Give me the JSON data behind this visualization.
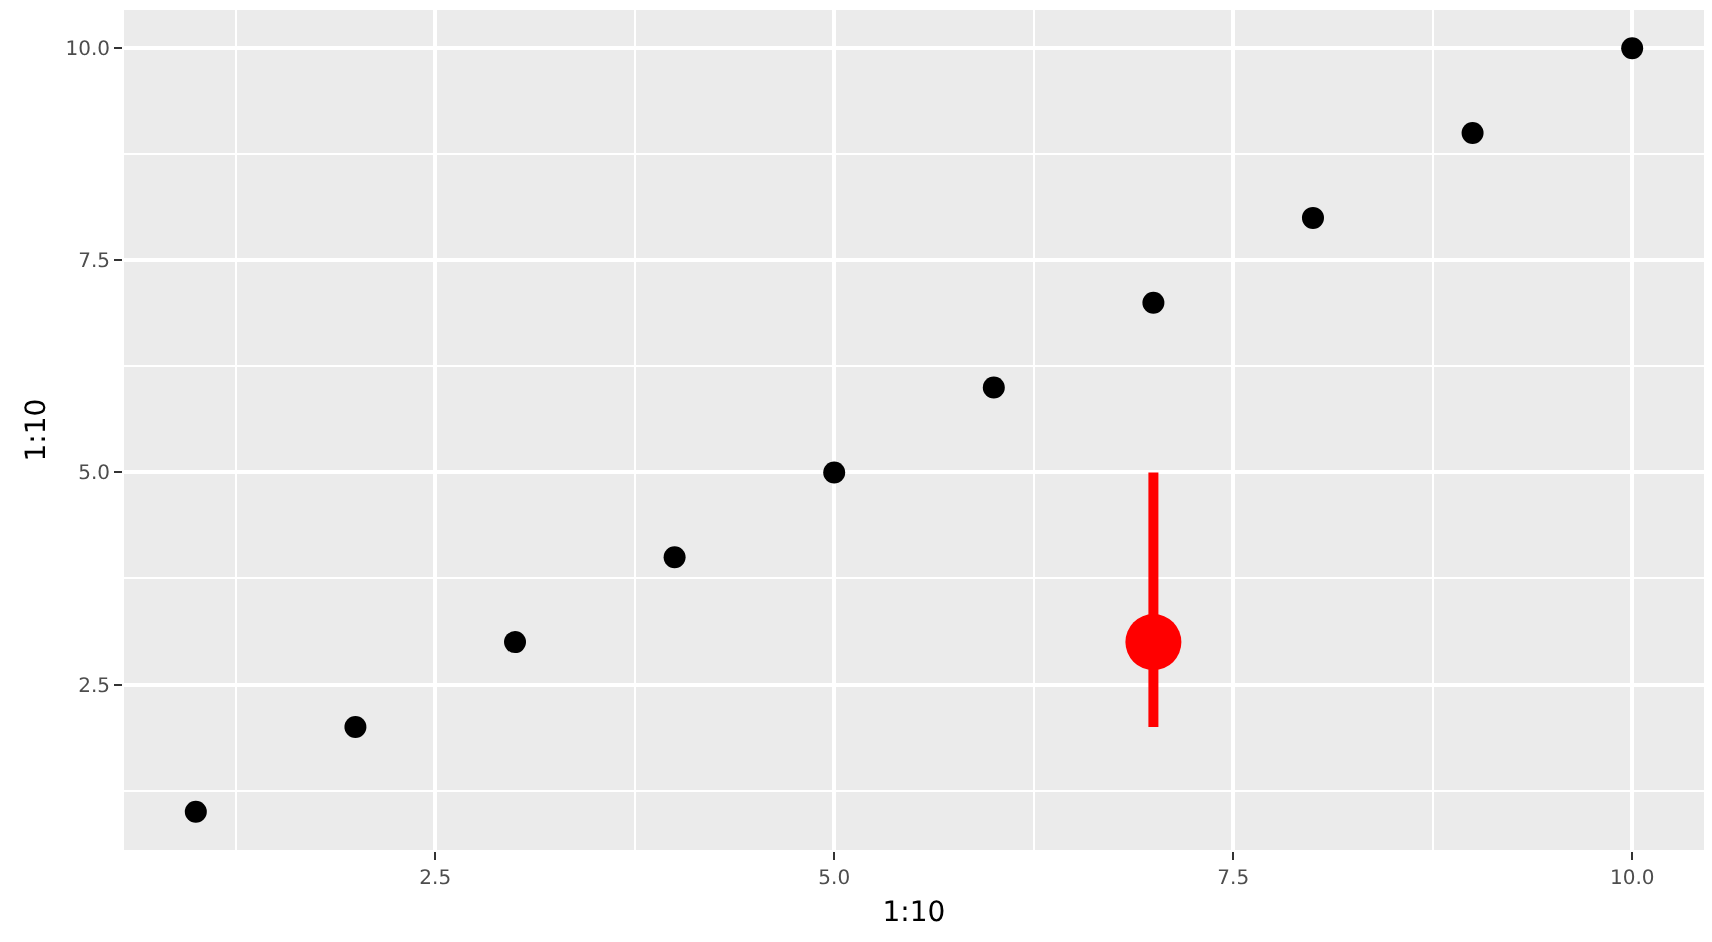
{
  "chart_data": {
    "type": "scatter",
    "xlabel": "1:10",
    "ylabel": "1:10",
    "series": [
      {
        "color": "#000000",
        "x": [
          1,
          2,
          3,
          4,
          5,
          6,
          7,
          8,
          9,
          10
        ],
        "values": [
          1,
          2,
          3,
          4,
          5,
          6,
          7,
          8,
          9,
          10
        ]
      },
      {
        "color": "#ff0000",
        "x": [
          7
        ],
        "values": [
          3
        ],
        "errors": [
          [
            2,
            5
          ]
        ]
      }
    ],
    "xlim": [
      0.55,
      10.45
    ],
    "ylim": [
      0.55,
      10.45
    ],
    "xticks": [
      {
        "value": 1.25,
        "label": null
      },
      {
        "value": 2.5,
        "label": "2.5"
      },
      {
        "value": 3.75,
        "label": null
      },
      {
        "value": 5,
        "label": "5.0"
      },
      {
        "value": 6.25,
        "label": null
      },
      {
        "value": 7.5,
        "label": "7.5"
      },
      {
        "value": 8.75,
        "label": null
      },
      {
        "value": 10,
        "label": "10.0"
      }
    ],
    "yticks": [
      {
        "value": 1.25,
        "label": null
      },
      {
        "value": 2.5,
        "label": "2.5"
      },
      {
        "value": 3.75,
        "label": null
      },
      {
        "value": 5,
        "label": "5.0"
      },
      {
        "value": 6.25,
        "label": null
      },
      {
        "value": 7.5,
        "label": "7.5"
      },
      {
        "value": 8.75,
        "label": null
      },
      {
        "value": 10,
        "label": "10.0"
      }
    ],
    "grid": true,
    "marker": "circle"
  }
}
